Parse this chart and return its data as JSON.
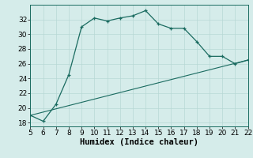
{
  "title": "",
  "xlabel": "Humidex (Indice chaleur)",
  "curve_x": [
    5,
    6,
    7,
    8,
    9,
    10,
    11,
    12,
    13,
    14,
    15,
    16,
    17,
    18,
    19,
    20,
    21,
    22
  ],
  "curve_y": [
    19.0,
    18.2,
    20.5,
    24.5,
    31.0,
    32.2,
    31.8,
    32.2,
    32.5,
    33.2,
    31.4,
    30.8,
    30.8,
    29.0,
    27.0,
    27.0,
    26.0,
    26.5
  ],
  "line_x": [
    5,
    22
  ],
  "line_y": [
    19.0,
    26.5
  ],
  "xlim": [
    5,
    22
  ],
  "ylim": [
    17.5,
    34.0
  ],
  "yticks": [
    18,
    20,
    22,
    24,
    26,
    28,
    30,
    32
  ],
  "xticks": [
    5,
    6,
    7,
    8,
    9,
    10,
    11,
    12,
    13,
    14,
    15,
    16,
    17,
    18,
    19,
    20,
    21,
    22
  ],
  "bg_color": "#d5ecea",
  "grid_color": "#b8d8d5",
  "line_color": "#1a6b60",
  "curve_color": "#1a6b60",
  "tick_fontsize": 6.5,
  "label_fontsize": 7.5
}
